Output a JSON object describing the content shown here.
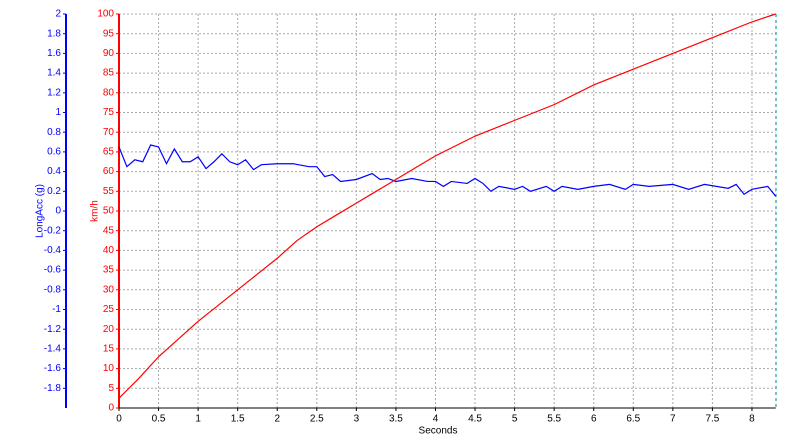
{
  "chart_data": {
    "type": "line",
    "xlabel": "Seconds",
    "ylabel": "LongAcc (g)",
    "y2label": "km/h",
    "xlim": [
      0,
      8.3
    ],
    "xticks": [
      0,
      0.5,
      1,
      1.5,
      2,
      2.5,
      3,
      3.5,
      4,
      4.5,
      5,
      5.5,
      6,
      6.5,
      7,
      7.5,
      8
    ],
    "ylim": [
      -2,
      2
    ],
    "yticks": [
      -1.8,
      -1.6,
      -1.4,
      -1.2,
      -1,
      -0.8,
      -0.6,
      -0.4,
      -0.2,
      0,
      0.2,
      0.4,
      0.6,
      0.8,
      1,
      1.2,
      1.4,
      1.6,
      1.8,
      2
    ],
    "y2lim": [
      0,
      100
    ],
    "y2ticks": [
      0,
      5,
      10,
      15,
      20,
      25,
      30,
      35,
      40,
      45,
      50,
      55,
      60,
      65,
      70,
      75,
      80,
      85,
      90,
      95,
      100
    ],
    "grid": true,
    "series": [
      {
        "color": "#0000ff",
        "axis": "y",
        "x": [
          0,
          0.1,
          0.2,
          0.3,
          0.4,
          0.5,
          0.6,
          0.7,
          0.8,
          0.9,
          1,
          1.1,
          1.2,
          1.3,
          1.4,
          1.5,
          1.6,
          1.7,
          1.8,
          2,
          2.2,
          2.4,
          2.5,
          2.6,
          2.7,
          2.8,
          3,
          3.2,
          3.3,
          3.4,
          3.5,
          3.7,
          3.9,
          4,
          4.1,
          4.2,
          4.4,
          4.5,
          4.6,
          4.7,
          4.8,
          5,
          5.1,
          5.2,
          5.4,
          5.5,
          5.6,
          5.8,
          6,
          6.2,
          6.4,
          6.5,
          6.7,
          7,
          7.2,
          7.4,
          7.7,
          7.8,
          7.9,
          8,
          8.2,
          8.3
        ],
        "values": [
          0.65,
          0.45,
          0.52,
          0.5,
          0.67,
          0.65,
          0.48,
          0.63,
          0.5,
          0.5,
          0.55,
          0.43,
          0.5,
          0.58,
          0.5,
          0.47,
          0.52,
          0.42,
          0.47,
          0.48,
          0.48,
          0.45,
          0.45,
          0.35,
          0.37,
          0.3,
          0.32,
          0.38,
          0.32,
          0.33,
          0.3,
          0.33,
          0.3,
          0.3,
          0.25,
          0.3,
          0.28,
          0.33,
          0.28,
          0.2,
          0.25,
          0.22,
          0.25,
          0.2,
          0.25,
          0.2,
          0.25,
          0.22,
          0.25,
          0.27,
          0.22,
          0.27,
          0.25,
          0.27,
          0.22,
          0.27,
          0.23,
          0.27,
          0.17,
          0.22,
          0.25,
          0.15
        ]
      },
      {
        "color": "#ff0000",
        "axis": "y2",
        "x": [
          0,
          0.25,
          0.5,
          0.75,
          1,
          1.25,
          1.5,
          1.75,
          2,
          2.25,
          2.5,
          2.75,
          3,
          3.25,
          3.5,
          3.75,
          4,
          4.25,
          4.5,
          5,
          5.5,
          6,
          6.5,
          7,
          7.5,
          8,
          8.3
        ],
        "values": [
          2.5,
          7.5,
          13,
          17.5,
          22,
          26,
          30,
          34,
          38,
          42.5,
          46,
          49,
          52,
          55,
          58,
          61,
          64,
          66.5,
          69,
          73,
          77,
          82,
          86,
          90,
          94,
          98,
          100
        ]
      }
    ]
  }
}
